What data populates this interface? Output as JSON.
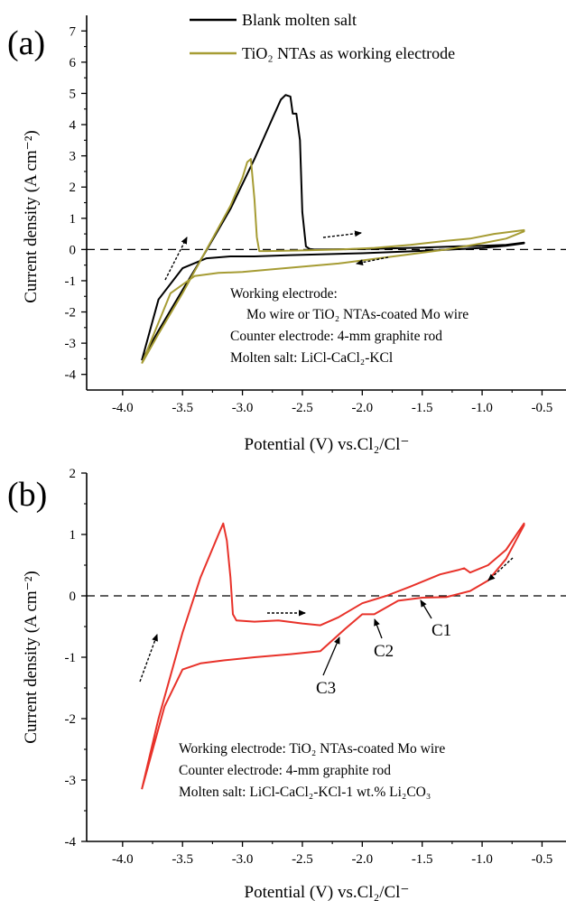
{
  "figure": {
    "panels": [
      "(a)",
      "(b)"
    ]
  },
  "chart_data": [
    {
      "type": "line",
      "panel_label": "(a)",
      "xlabel": "Potential (V) vs.Cl₂/Cl⁻",
      "ylabel": "Current density (A cm⁻²)",
      "xlim": [
        -4.3,
        -0.3
      ],
      "ylim": [
        -4.5,
        7.5
      ],
      "xticks": [
        -4.0,
        -3.5,
        -3.0,
        -2.5,
        -2.0,
        -1.5,
        -1.0,
        -0.5
      ],
      "xtick_labels": [
        "-4.0",
        "-3.5",
        "-3.0",
        "-2.5",
        "-2.0",
        "-1.5",
        "-1.0",
        "-0.5"
      ],
      "yticks": [
        -4,
        -3,
        -2,
        -1,
        0,
        1,
        2,
        3,
        4,
        5,
        6,
        7
      ],
      "ytick_labels": [
        "-4",
        "-3",
        "-2",
        "-1",
        "0",
        "1",
        "2",
        "3",
        "4",
        "5",
        "6",
        "7"
      ],
      "zero_line": true,
      "grid": false,
      "legend_position": "top",
      "legend": [
        {
          "name": "Blank molten salt",
          "color": "#000000"
        },
        {
          "name": "TiO₂ NTAs as working electrode",
          "color": "#a69c34"
        }
      ],
      "notes": [
        "Working electrode:",
        "Mo wire or TiO₂ NTAs-coated Mo wire",
        "Counter  electrode: 4-mm graphite rod",
        "Molten salt: LiCl-CaCl₂-KCl"
      ],
      "series": [
        {
          "name": "Blank molten salt",
          "color": "#000000",
          "x": [
            -3.84,
            -3.7,
            -3.5,
            -3.3,
            -3.1,
            -2.9,
            -2.75,
            -2.68,
            -2.64,
            -2.6,
            -2.58,
            -2.55,
            -2.52,
            -2.5,
            -2.47,
            -2.44,
            -2.4,
            -2.1,
            -1.8,
            -1.5,
            -1.2,
            -1.0,
            -0.8,
            -0.65,
            -0.65,
            -0.8,
            -1.0,
            -1.4,
            -2.0,
            -2.6,
            -2.9,
            -3.1,
            -3.3,
            -3.5,
            -3.7,
            -3.84
          ],
          "y": [
            -3.55,
            -2.6,
            -1.3,
            -0.02,
            1.3,
            2.9,
            4.2,
            4.8,
            4.95,
            4.9,
            4.35,
            4.35,
            3.5,
            1.2,
            0.1,
            0.02,
            0.0,
            0.01,
            0.03,
            0.06,
            0.1,
            0.12,
            0.15,
            0.22,
            0.2,
            0.12,
            0.05,
            -0.03,
            -0.12,
            -0.18,
            -0.22,
            -0.22,
            -0.28,
            -0.6,
            -1.6,
            -3.55
          ]
        },
        {
          "name": "TiO₂ NTAs as working electrode",
          "color": "#a69c34",
          "x": [
            -3.84,
            -3.7,
            -3.5,
            -3.3,
            -3.1,
            -3.0,
            -2.96,
            -2.93,
            -2.9,
            -2.88,
            -2.86,
            -2.8,
            -2.5,
            -2.2,
            -1.9,
            -1.6,
            -1.3,
            -1.1,
            -0.9,
            -0.65,
            -0.65,
            -0.8,
            -1.0,
            -1.3,
            -1.6,
            -1.9,
            -2.2,
            -2.5,
            -2.8,
            -3.0,
            -3.2,
            -3.4,
            -3.6,
            -3.84
          ],
          "y": [
            -3.65,
            -2.7,
            -1.4,
            0.0,
            1.4,
            2.3,
            2.8,
            2.9,
            1.6,
            0.4,
            -0.05,
            -0.05,
            -0.03,
            0.0,
            0.05,
            0.15,
            0.28,
            0.35,
            0.5,
            0.62,
            0.58,
            0.35,
            0.2,
            0.0,
            -0.15,
            -0.3,
            -0.45,
            -0.55,
            -0.65,
            -0.72,
            -0.75,
            -0.85,
            -1.4,
            -3.65
          ]
        }
      ]
    },
    {
      "type": "line",
      "panel_label": "(b)",
      "xlabel": "Potential (V)  vs.Cl₂/Cl⁻",
      "ylabel": "Current density (A cm⁻²)",
      "xlim": [
        -4.3,
        -0.3
      ],
      "ylim": [
        -4,
        2
      ],
      "xticks": [
        -4.0,
        -3.5,
        -3.0,
        -2.5,
        -2.0,
        -1.5,
        -1.0,
        -0.5
      ],
      "xtick_labels": [
        "-4.0",
        "-3.5",
        "-3.0",
        "-2.5",
        "-2.0",
        "-1.5",
        "-1.0",
        "-0.5"
      ],
      "yticks": [
        -4,
        -3,
        -2,
        -1,
        0,
        1,
        2
      ],
      "ytick_labels": [
        "-4",
        "-3",
        "-2",
        "-1",
        "0",
        "1",
        "2"
      ],
      "zero_line": true,
      "grid": false,
      "notes": [
        "Working electrode: TiO₂ NTAs-coated Mo wire",
        "Counter  electrode:  4-mm graphite rod",
        "Molten salt: LiCl-CaCl₂-KCl-1 wt.% Li₂CO₃"
      ],
      "annotations": [
        "C1",
        "C2",
        "C3"
      ],
      "series": [
        {
          "name": "",
          "color": "#e8322a",
          "x": [
            -3.84,
            -3.7,
            -3.5,
            -3.35,
            -3.2,
            -3.16,
            -3.13,
            -3.1,
            -3.08,
            -3.05,
            -2.9,
            -2.7,
            -2.5,
            -2.35,
            -2.2,
            -2.0,
            -1.8,
            -1.6,
            -1.35,
            -1.2,
            -1.15,
            -1.1,
            -0.95,
            -0.8,
            -0.65,
            -0.65,
            -0.8,
            -0.95,
            -1.1,
            -1.3,
            -1.5,
            -1.7,
            -1.9,
            -2.0,
            -2.15,
            -2.35,
            -2.6,
            -2.9,
            -3.15,
            -3.35,
            -3.5,
            -3.65,
            -3.84
          ],
          "y": [
            -3.15,
            -2.0,
            -0.6,
            0.3,
            1.0,
            1.18,
            0.9,
            0.3,
            -0.3,
            -0.4,
            -0.42,
            -0.4,
            -0.45,
            -0.48,
            -0.35,
            -0.12,
            0.0,
            0.15,
            0.35,
            0.42,
            0.45,
            0.38,
            0.5,
            0.75,
            1.18,
            1.15,
            0.6,
            0.25,
            0.08,
            -0.02,
            -0.03,
            -0.08,
            -0.3,
            -0.3,
            -0.55,
            -0.9,
            -0.95,
            -1.0,
            -1.05,
            -1.1,
            -1.2,
            -1.8,
            -3.15
          ]
        }
      ]
    }
  ]
}
